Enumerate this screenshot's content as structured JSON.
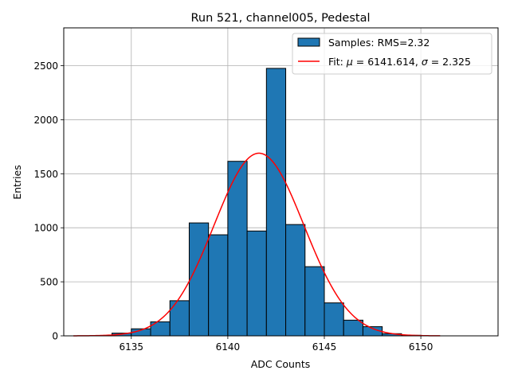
{
  "chart_data": {
    "type": "bar",
    "title": "Run 521, channel005, Pedestal",
    "xlabel": "ADC Counts",
    "ylabel": "Entries",
    "xlim": [
      6131.5,
      6154.0
    ],
    "ylim": [
      0,
      2850
    ],
    "grid": true,
    "bar_color": "#1f77b4",
    "fit_color": "#ff0000",
    "x_ticks": [
      6135,
      6140,
      6145,
      6150
    ],
    "y_ticks": [
      0,
      500,
      1000,
      1500,
      2000,
      2500
    ],
    "bins": [
      {
        "left": 6132,
        "right": 6133,
        "value": 0
      },
      {
        "left": 6133,
        "right": 6134,
        "value": 0
      },
      {
        "left": 6134,
        "right": 6135,
        "value": 25
      },
      {
        "left": 6135,
        "right": 6136,
        "value": 65
      },
      {
        "left": 6136,
        "right": 6137,
        "value": 130
      },
      {
        "left": 6137,
        "right": 6138,
        "value": 325
      },
      {
        "left": 6138,
        "right": 6139,
        "value": 1045
      },
      {
        "left": 6139,
        "right": 6140,
        "value": 935
      },
      {
        "left": 6140,
        "right": 6141,
        "value": 1615
      },
      {
        "left": 6141,
        "right": 6142,
        "value": 970
      },
      {
        "left": 6142,
        "right": 6143,
        "value": 2475
      },
      {
        "left": 6143,
        "right": 6144,
        "value": 1030
      },
      {
        "left": 6144,
        "right": 6145,
        "value": 640
      },
      {
        "left": 6145,
        "right": 6146,
        "value": 305
      },
      {
        "left": 6146,
        "right": 6147,
        "value": 145
      },
      {
        "left": 6147,
        "right": 6148,
        "value": 85
      },
      {
        "left": 6148,
        "right": 6149,
        "value": 20
      },
      {
        "left": 6149,
        "right": 6150,
        "value": 5
      },
      {
        "left": 6150,
        "right": 6151,
        "value": 0
      },
      {
        "left": 6151,
        "right": 6152,
        "value": 0
      },
      {
        "left": 6152,
        "right": 6153,
        "value": 0
      }
    ],
    "fit": {
      "mu": 6141.614,
      "sigma": 2.325,
      "amplitude": 1690,
      "x_range": [
        6132,
        6151
      ]
    },
    "legend": {
      "placement": "top-right",
      "samples_label": "Samples: RMS=2.32",
      "fit_label_prefix": "Fit: ",
      "mu_symbol": "μ",
      "mu_value": " = 6141.614, ",
      "sigma_symbol": "σ",
      "sigma_value": " = 2.325"
    }
  }
}
